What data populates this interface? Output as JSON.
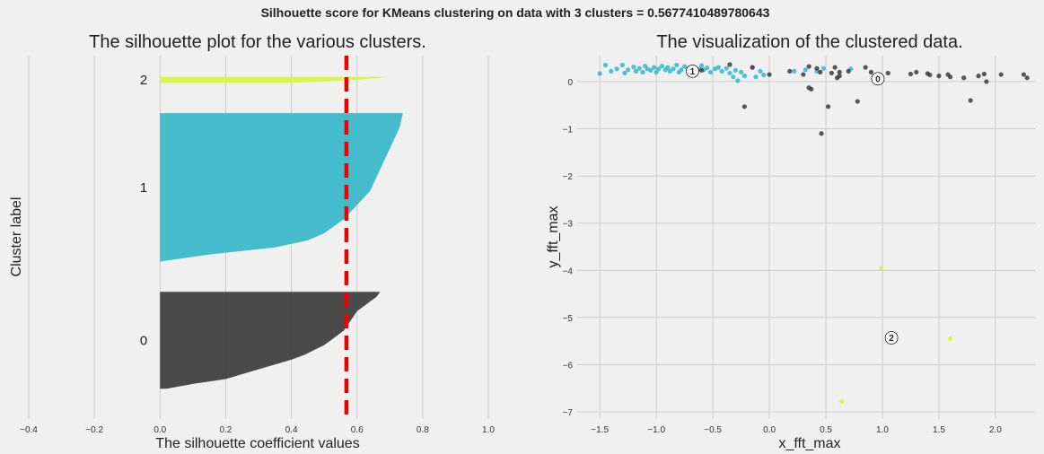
{
  "suptitle": "Silhouette score for KMeans clustering on data with 3 clusters = 0.5677410489780643",
  "chart_data": [
    {
      "type": "area",
      "title": "The silhouette plot for the various clusters.",
      "xlabel": "The silhouette coefficient values",
      "ylabel": "Cluster label",
      "xlim": [
        -0.4,
        1.0
      ],
      "xticks": [
        -0.4,
        -0.2,
        0.0,
        0.2,
        0.4,
        0.6,
        0.8,
        1.0
      ],
      "xtick_labels": [
        "−0.4",
        "−0.2",
        "0.0",
        "0.2",
        "0.4",
        "0.6",
        "0.8",
        "1.0"
      ],
      "ylim": [
        0,
        120
      ],
      "grid": "vertical",
      "average_silhouette": 0.5677,
      "average_line_color": "#ee0000",
      "clusters": [
        {
          "label": "0",
          "color": "#3c3c3c",
          "y_lower": 10,
          "y_upper": 42,
          "values": [
            0.67,
            0.66,
            0.64,
            0.62,
            0.6,
            0.59,
            0.58,
            0.57,
            0.56,
            0.54,
            0.52,
            0.5,
            0.47,
            0.44,
            0.4,
            0.35,
            0.3,
            0.25,
            0.2,
            0.1,
            0.02
          ]
        },
        {
          "label": "1",
          "color": "#35b7c8",
          "y_lower": 52,
          "y_upper": 101,
          "values": [
            0.74,
            0.735,
            0.73,
            0.72,
            0.71,
            0.7,
            0.69,
            0.68,
            0.67,
            0.66,
            0.65,
            0.64,
            0.62,
            0.6,
            0.58,
            0.56,
            0.53,
            0.5,
            0.45,
            0.35,
            0.15,
            0.0
          ]
        },
        {
          "label": "2",
          "color": "#d6f43f",
          "y_lower": 111,
          "y_upper": 113,
          "values": [
            0.7,
            0.6,
            0.4
          ]
        }
      ]
    },
    {
      "type": "scatter",
      "title": "The visualization of the clustered data.",
      "xlabel": "x_fft_max",
      "ylabel": "y_fft_max",
      "xlim": [
        -1.7,
        2.35
      ],
      "ylim": [
        -7.15,
        0.55
      ],
      "xticks": [
        -1.5,
        -1.0,
        -0.5,
        0.0,
        0.5,
        1.0,
        1.5,
        2.0
      ],
      "xtick_labels": [
        "−1.5",
        "−1.0",
        "−0.5",
        "0.0",
        "0.5",
        "1.0",
        "1.5",
        "2.0"
      ],
      "yticks": [
        0,
        -1,
        -2,
        -3,
        -4,
        -5,
        -6,
        -7
      ],
      "ytick_labels": [
        "0",
        "−1",
        "−2",
        "−3",
        "−4",
        "−5",
        "−6",
        "−7"
      ],
      "grid": "both",
      "series": [
        {
          "color": "#35b7c8",
          "points": [
            [
              -1.5,
              0.17
            ],
            [
              -1.45,
              0.35
            ],
            [
              -1.4,
              0.22
            ],
            [
              -1.35,
              0.27
            ],
            [
              -1.3,
              0.35
            ],
            [
              -1.28,
              0.18
            ],
            [
              -1.25,
              0.25
            ],
            [
              -1.2,
              0.31
            ],
            [
              -1.18,
              0.22
            ],
            [
              -1.15,
              0.28
            ],
            [
              -1.12,
              0.2
            ],
            [
              -1.1,
              0.33
            ],
            [
              -1.08,
              0.27
            ],
            [
              -1.05,
              0.24
            ],
            [
              -1.02,
              0.3
            ],
            [
              -1.0,
              0.2
            ],
            [
              -0.98,
              0.27
            ],
            [
              -0.95,
              0.33
            ],
            [
              -0.92,
              0.25
            ],
            [
              -0.9,
              0.3
            ],
            [
              -0.88,
              0.22
            ],
            [
              -0.85,
              0.27
            ],
            [
              -0.82,
              0.35
            ],
            [
              -0.8,
              0.2
            ],
            [
              -0.78,
              0.25
            ],
            [
              -0.75,
              0.32
            ],
            [
              -0.72,
              0.27
            ],
            [
              -0.7,
              0.22
            ],
            [
              -0.68,
              0.3
            ],
            [
              -0.65,
              0.18
            ],
            [
              -0.62,
              0.26
            ],
            [
              -0.6,
              0.34
            ],
            [
              -0.58,
              0.25
            ],
            [
              -0.55,
              0.29
            ],
            [
              -0.52,
              0.2
            ],
            [
              -0.48,
              0.27
            ],
            [
              -0.45,
              0.3
            ],
            [
              -0.42,
              0.22
            ],
            [
              -0.38,
              0.28
            ],
            [
              -0.35,
              0.18
            ],
            [
              -0.32,
              0.1
            ],
            [
              -0.3,
              0.24
            ],
            [
              -0.28,
              0.02
            ],
            [
              -0.25,
              0.2
            ],
            [
              -0.22,
              0.12
            ],
            [
              -0.15,
              0.3
            ],
            [
              -0.12,
              0.1
            ],
            [
              -0.08,
              0.22
            ],
            [
              -0.05,
              0.14
            ],
            [
              0.22,
              0.22
            ],
            [
              0.32,
              0.25
            ],
            [
              0.42,
              0.22
            ],
            [
              0.48,
              0.28
            ],
            [
              0.72,
              0.27
            ]
          ]
        },
        {
          "color": "#3c3c3c",
          "points": [
            [
              -0.6,
              0.24
            ],
            [
              -0.35,
              0.36
            ],
            [
              -0.22,
              -0.53
            ],
            [
              -0.15,
              0.3
            ],
            [
              0.0,
              0.15
            ],
            [
              0.18,
              0.22
            ],
            [
              0.3,
              0.15
            ],
            [
              0.35,
              -0.13
            ],
            [
              0.37,
              -0.16
            ],
            [
              0.35,
              0.32
            ],
            [
              0.42,
              0.28
            ],
            [
              0.45,
              0.2
            ],
            [
              0.46,
              -1.1
            ],
            [
              0.52,
              -0.53
            ],
            [
              0.55,
              0.18
            ],
            [
              0.58,
              0.3
            ],
            [
              0.6,
              0.08
            ],
            [
              0.62,
              0.2
            ],
            [
              0.62,
              0.12
            ],
            [
              0.7,
              0.22
            ],
            [
              0.78,
              -0.42
            ],
            [
              0.85,
              0.3
            ],
            [
              0.9,
              0.2
            ],
            [
              1.05,
              0.18
            ],
            [
              1.25,
              0.16
            ],
            [
              1.3,
              0.2
            ],
            [
              1.4,
              0.17
            ],
            [
              1.42,
              0.14
            ],
            [
              1.5,
              0.12
            ],
            [
              1.58,
              0.15
            ],
            [
              1.6,
              0.1
            ],
            [
              1.72,
              0.08
            ],
            [
              1.78,
              -0.4
            ],
            [
              1.85,
              0.12
            ],
            [
              1.9,
              0.16
            ],
            [
              1.92,
              0.0
            ],
            [
              2.05,
              0.15
            ],
            [
              2.25,
              0.15
            ],
            [
              2.28,
              0.08
            ]
          ]
        },
        {
          "color": "#d6f43f",
          "points": [
            [
              0.99,
              -3.95
            ],
            [
              1.6,
              -5.45
            ],
            [
              0.64,
              -6.78
            ]
          ]
        }
      ],
      "centers": [
        {
          "label": "0",
          "x": 0.96,
          "y": 0.06
        },
        {
          "label": "1",
          "x": -0.68,
          "y": 0.22
        },
        {
          "label": "2",
          "x": 1.08,
          "y": -5.43
        }
      ]
    }
  ]
}
